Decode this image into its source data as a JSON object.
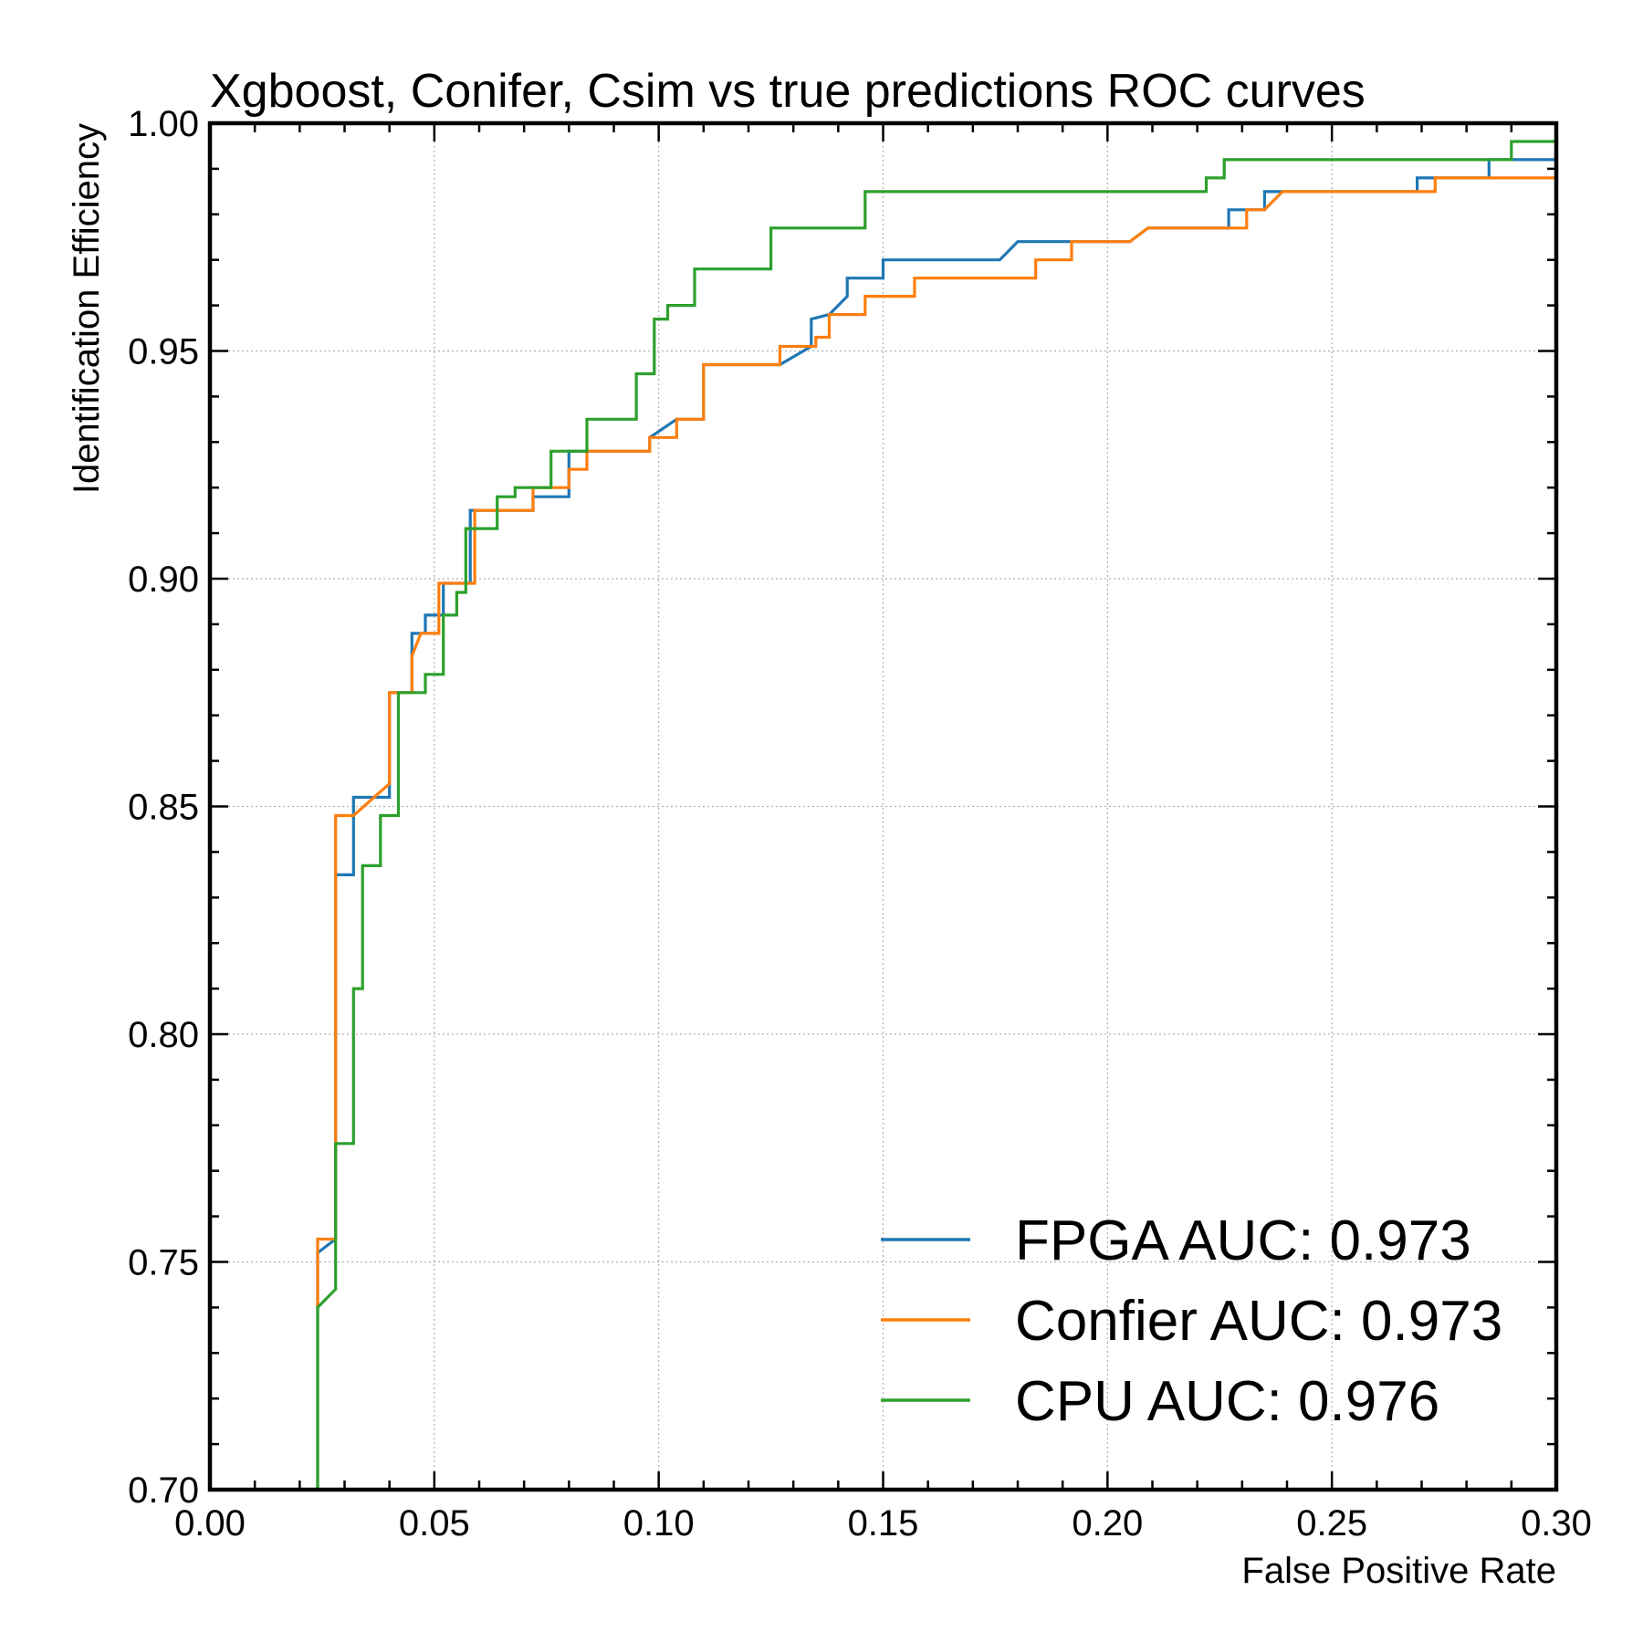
{
  "chart_data": {
    "type": "line",
    "title": "Xgboost, Conifer, Csim vs true predictions ROC curves",
    "xlabel": "False Positive Rate",
    "ylabel": "Identification Efficiency",
    "xlim": [
      0.0,
      0.3
    ],
    "ylim": [
      0.7,
      1.0
    ],
    "xticks": [
      "0.00",
      "0.05",
      "0.10",
      "0.15",
      "0.20",
      "0.25",
      "0.30"
    ],
    "yticks": [
      "0.70",
      "0.75",
      "0.80",
      "0.85",
      "0.90",
      "0.95",
      "1.00"
    ],
    "grid": true,
    "legend_position": "lower right",
    "series": [
      {
        "name": "FPGA AUC: 0.973",
        "color": "#1f77b4",
        "points": [
          [
            0.024,
            0.7
          ],
          [
            0.024,
            0.752
          ],
          [
            0.028,
            0.755
          ],
          [
            0.028,
            0.835
          ],
          [
            0.032,
            0.835
          ],
          [
            0.032,
            0.852
          ],
          [
            0.04,
            0.852
          ],
          [
            0.04,
            0.875
          ],
          [
            0.045,
            0.875
          ],
          [
            0.045,
            0.888
          ],
          [
            0.048,
            0.888
          ],
          [
            0.048,
            0.892
          ],
          [
            0.052,
            0.892
          ],
          [
            0.052,
            0.899
          ],
          [
            0.058,
            0.899
          ],
          [
            0.058,
            0.915
          ],
          [
            0.072,
            0.915
          ],
          [
            0.072,
            0.918
          ],
          [
            0.08,
            0.918
          ],
          [
            0.08,
            0.928
          ],
          [
            0.098,
            0.928
          ],
          [
            0.098,
            0.931
          ],
          [
            0.104,
            0.935
          ],
          [
            0.11,
            0.935
          ],
          [
            0.11,
            0.947
          ],
          [
            0.127,
            0.947
          ],
          [
            0.134,
            0.951
          ],
          [
            0.134,
            0.957
          ],
          [
            0.138,
            0.958
          ],
          [
            0.142,
            0.962
          ],
          [
            0.142,
            0.966
          ],
          [
            0.15,
            0.966
          ],
          [
            0.15,
            0.97
          ],
          [
            0.176,
            0.97
          ],
          [
            0.18,
            0.974
          ],
          [
            0.192,
            0.974
          ],
          [
            0.205,
            0.974
          ],
          [
            0.209,
            0.977
          ],
          [
            0.227,
            0.977
          ],
          [
            0.227,
            0.981
          ],
          [
            0.235,
            0.981
          ],
          [
            0.235,
            0.985
          ],
          [
            0.269,
            0.985
          ],
          [
            0.269,
            0.988
          ],
          [
            0.285,
            0.988
          ],
          [
            0.285,
            0.992
          ],
          [
            0.3,
            0.992
          ]
        ]
      },
      {
        "name": "Confier AUC: 0.973",
        "color": "#ff7f0e",
        "points": [
          [
            0.024,
            0.74
          ],
          [
            0.024,
            0.755
          ],
          [
            0.028,
            0.755
          ],
          [
            0.028,
            0.848
          ],
          [
            0.032,
            0.848
          ],
          [
            0.04,
            0.855
          ],
          [
            0.04,
            0.875
          ],
          [
            0.045,
            0.875
          ],
          [
            0.045,
            0.883
          ],
          [
            0.047,
            0.888
          ],
          [
            0.051,
            0.888
          ],
          [
            0.051,
            0.899
          ],
          [
            0.059,
            0.899
          ],
          [
            0.059,
            0.915
          ],
          [
            0.072,
            0.915
          ],
          [
            0.072,
            0.92
          ],
          [
            0.08,
            0.92
          ],
          [
            0.08,
            0.924
          ],
          [
            0.084,
            0.924
          ],
          [
            0.084,
            0.928
          ],
          [
            0.098,
            0.928
          ],
          [
            0.098,
            0.931
          ],
          [
            0.104,
            0.931
          ],
          [
            0.104,
            0.935
          ],
          [
            0.11,
            0.935
          ],
          [
            0.11,
            0.947
          ],
          [
            0.127,
            0.947
          ],
          [
            0.127,
            0.951
          ],
          [
            0.135,
            0.951
          ],
          [
            0.135,
            0.953
          ],
          [
            0.138,
            0.953
          ],
          [
            0.138,
            0.958
          ],
          [
            0.146,
            0.958
          ],
          [
            0.146,
            0.962
          ],
          [
            0.157,
            0.962
          ],
          [
            0.157,
            0.966
          ],
          [
            0.184,
            0.966
          ],
          [
            0.184,
            0.97
          ],
          [
            0.192,
            0.97
          ],
          [
            0.192,
            0.974
          ],
          [
            0.205,
            0.974
          ],
          [
            0.209,
            0.977
          ],
          [
            0.231,
            0.977
          ],
          [
            0.231,
            0.981
          ],
          [
            0.235,
            0.981
          ],
          [
            0.239,
            0.985
          ],
          [
            0.273,
            0.985
          ],
          [
            0.273,
            0.988
          ],
          [
            0.3,
            0.988
          ]
        ]
      },
      {
        "name": "CPU AUC: 0.976",
        "color": "#2ca02c",
        "points": [
          [
            0.024,
            0.7
          ],
          [
            0.024,
            0.74
          ],
          [
            0.028,
            0.744
          ],
          [
            0.028,
            0.776
          ],
          [
            0.032,
            0.776
          ],
          [
            0.032,
            0.81
          ],
          [
            0.034,
            0.81
          ],
          [
            0.034,
            0.837
          ],
          [
            0.038,
            0.837
          ],
          [
            0.038,
            0.848
          ],
          [
            0.042,
            0.848
          ],
          [
            0.042,
            0.875
          ],
          [
            0.048,
            0.875
          ],
          [
            0.048,
            0.879
          ],
          [
            0.052,
            0.879
          ],
          [
            0.052,
            0.892
          ],
          [
            0.055,
            0.892
          ],
          [
            0.055,
            0.897
          ],
          [
            0.057,
            0.897
          ],
          [
            0.057,
            0.911
          ],
          [
            0.064,
            0.911
          ],
          [
            0.064,
            0.918
          ],
          [
            0.068,
            0.918
          ],
          [
            0.068,
            0.92
          ],
          [
            0.076,
            0.92
          ],
          [
            0.076,
            0.928
          ],
          [
            0.084,
            0.928
          ],
          [
            0.084,
            0.935
          ],
          [
            0.095,
            0.935
          ],
          [
            0.095,
            0.945
          ],
          [
            0.099,
            0.945
          ],
          [
            0.099,
            0.957
          ],
          [
            0.102,
            0.957
          ],
          [
            0.102,
            0.96
          ],
          [
            0.108,
            0.96
          ],
          [
            0.108,
            0.968
          ],
          [
            0.125,
            0.968
          ],
          [
            0.125,
            0.977
          ],
          [
            0.146,
            0.977
          ],
          [
            0.146,
            0.985
          ],
          [
            0.222,
            0.985
          ],
          [
            0.222,
            0.988
          ],
          [
            0.226,
            0.988
          ],
          [
            0.226,
            0.992
          ],
          [
            0.29,
            0.992
          ],
          [
            0.29,
            0.996
          ],
          [
            0.3,
            0.996
          ]
        ]
      }
    ]
  }
}
